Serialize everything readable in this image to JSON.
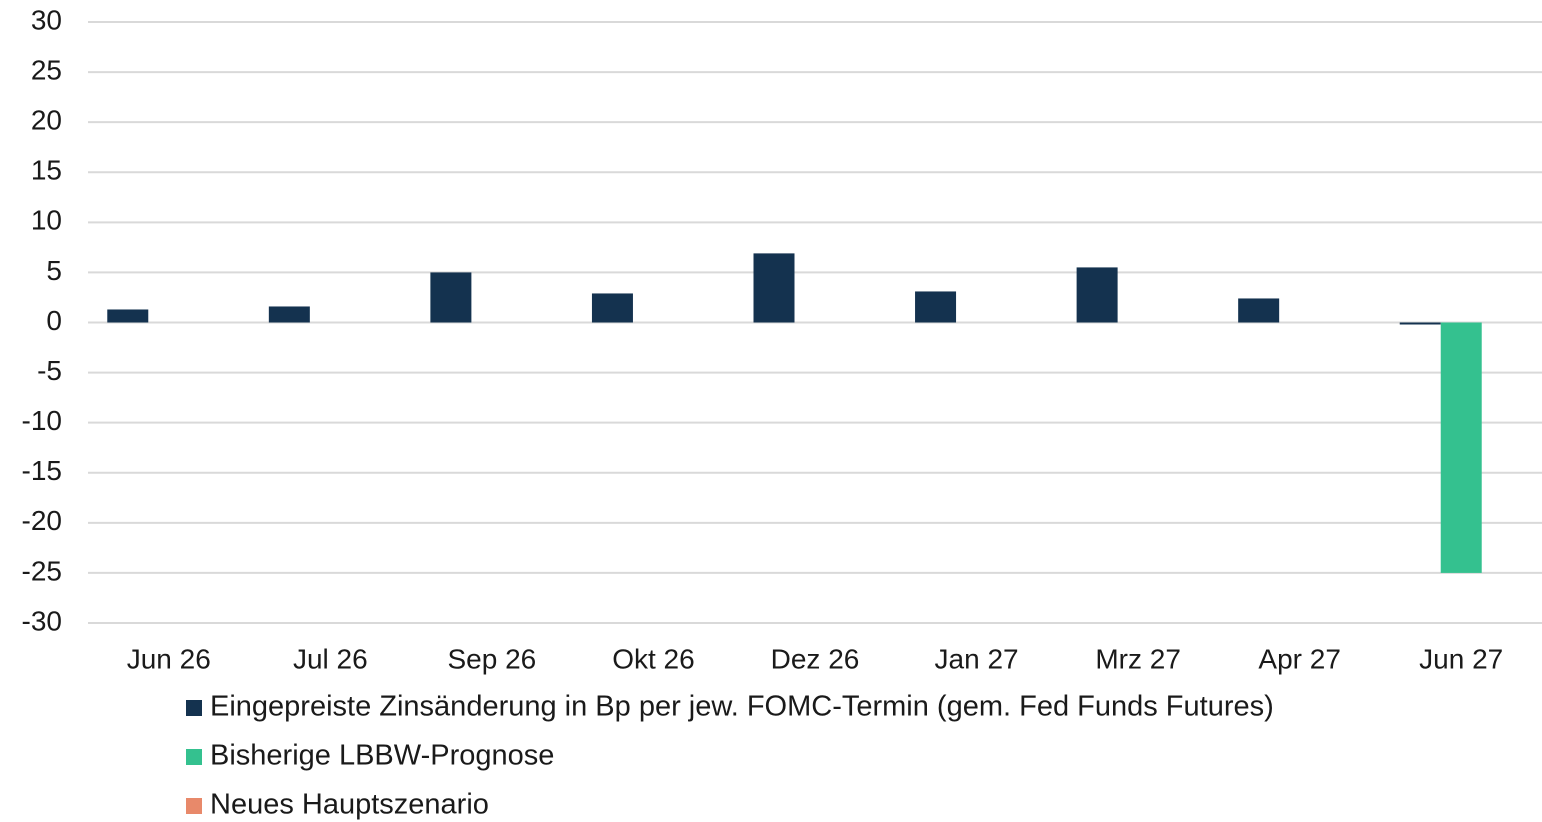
{
  "chart_data": {
    "type": "bar",
    "categories": [
      "Jun 26",
      "Jul 26",
      "Sep 26",
      "Okt 26",
      "Dez 26",
      "Jan 27",
      "Mrz 27",
      "Apr 27",
      "Jun 27"
    ],
    "series": [
      {
        "name": "Eingepreiste Zinsänderung in Bp per jew. FOMC-Termin (gem. Fed Funds Futures)",
        "color": "#14324f",
        "values": [
          1.3,
          1.6,
          5.0,
          2.9,
          6.9,
          3.1,
          5.5,
          2.4,
          -0.2
        ]
      },
      {
        "name": "Bisherige LBBW-Prognose",
        "color": "#34c18f",
        "values": [
          null,
          null,
          null,
          null,
          null,
          null,
          null,
          null,
          -25
        ]
      },
      {
        "name": "Neues Hauptszenario",
        "color": "#e8896a",
        "values": [
          null,
          null,
          null,
          null,
          null,
          null,
          null,
          null,
          null
        ]
      }
    ],
    "ylim": [
      -30,
      30
    ],
    "yticks": [
      -30,
      -25,
      -20,
      -15,
      -10,
      -5,
      0,
      5,
      10,
      15,
      20,
      25,
      30
    ],
    "grid": true,
    "legend": "bottom"
  }
}
